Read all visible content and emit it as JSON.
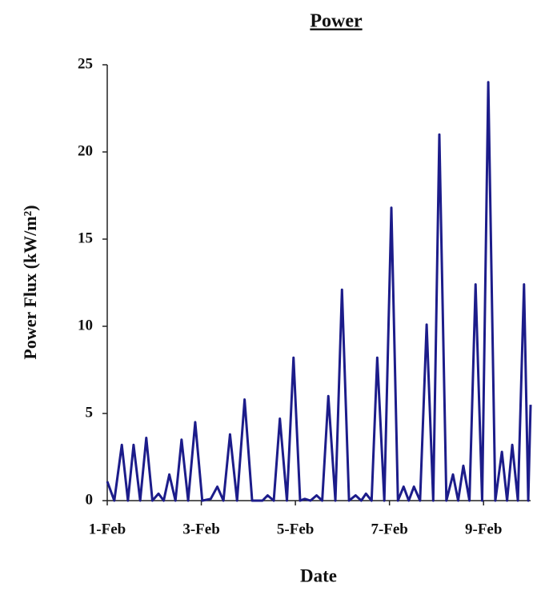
{
  "chart_data": {
    "type": "line",
    "title": "Power",
    "x_label": "Date",
    "y_label": "Power Flux (kW/m²)",
    "x": [
      1.0,
      1.15,
      1.31,
      1.44,
      1.56,
      1.7,
      1.83,
      1.96,
      2.09,
      2.2,
      2.32,
      2.45,
      2.58,
      2.72,
      2.87,
      3.02,
      3.2,
      3.34,
      3.47,
      3.61,
      3.76,
      3.92,
      4.08,
      4.3,
      4.41,
      4.54,
      4.67,
      4.82,
      4.96,
      5.1,
      5.2,
      5.32,
      5.45,
      5.57,
      5.7,
      5.85,
      5.99,
      6.14,
      6.28,
      6.4,
      6.5,
      6.62,
      6.74,
      6.89,
      7.04,
      7.18,
      7.3,
      7.41,
      7.52,
      7.65,
      7.79,
      7.93,
      8.06,
      8.21,
      8.35,
      8.46,
      8.57,
      8.7,
      8.83,
      8.97,
      9.1,
      9.25,
      9.39,
      9.5,
      9.61,
      9.73,
      9.86,
      9.95,
      10.0
    ],
    "series": [
      {
        "color": "#1c1c8a",
        "values": [
          1.1,
          0,
          3.2,
          0,
          3.2,
          0,
          3.6,
          0,
          0.4,
          0,
          1.5,
          0,
          3.5,
          0,
          4.5,
          0,
          0.1,
          0.8,
          0,
          3.8,
          0,
          5.8,
          0,
          0,
          0.3,
          0,
          4.7,
          0,
          8.2,
          0,
          0.1,
          0,
          0.3,
          0,
          6.0,
          0,
          12.1,
          0,
          0.3,
          0,
          0.4,
          0,
          8.2,
          0,
          16.8,
          0,
          0.8,
          0,
          0.8,
          0,
          10.1,
          0,
          21.0,
          0,
          1.5,
          0,
          2.0,
          0,
          12.4,
          0,
          24.0,
          0,
          2.8,
          0,
          3.2,
          0,
          12.4,
          0,
          5.5
        ]
      }
    ],
    "xlim": [
      1,
      10
    ],
    "xticks": [
      {
        "value": 1,
        "label": "1-Feb"
      },
      {
        "value": 3,
        "label": "3-Feb"
      },
      {
        "value": 5,
        "label": "5-Feb"
      },
      {
        "value": 7,
        "label": "7-Feb"
      },
      {
        "value": 9,
        "label": "9-Feb"
      }
    ],
    "ylim": [
      0,
      25
    ],
    "yticks": [
      0,
      5,
      10,
      15,
      20,
      25
    ],
    "grid": false
  }
}
